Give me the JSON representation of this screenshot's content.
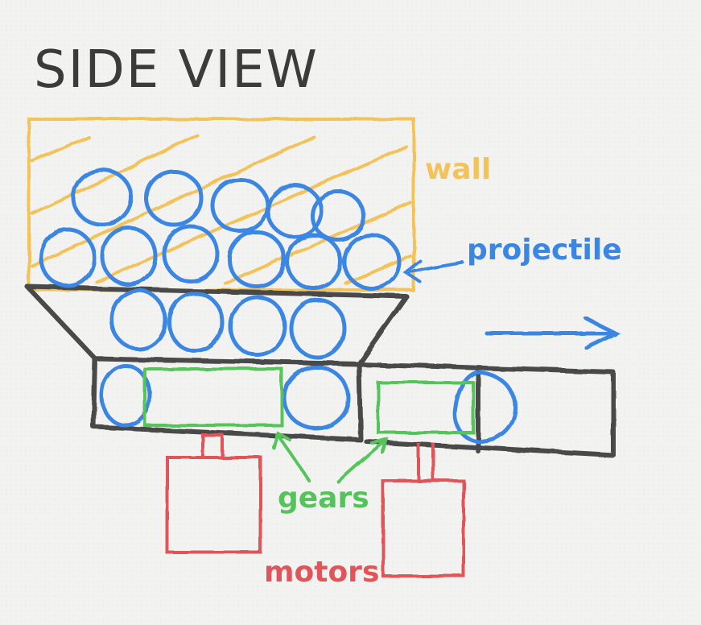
{
  "title": "SIDE VIEW",
  "labels": {
    "wall": "wall",
    "projectile": "projectile",
    "gears": "gears",
    "motors": "motors"
  },
  "colors": {
    "background": "#f2f2f1",
    "outline": "#4a4a4a",
    "wall": "#f2c35a",
    "projectile": "#3a86e3",
    "gears": "#54c45a",
    "motors": "#e0555a"
  },
  "icons": [
    "direction-arrow-icon",
    "pointer-arrow-icon"
  ]
}
